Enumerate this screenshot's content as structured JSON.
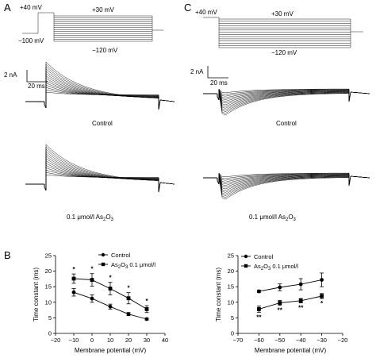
{
  "figure": {
    "panel_a": "A",
    "panel_b": "B",
    "panel_c": "C",
    "voltage_protocol": {
      "holding_high": "+40 mV",
      "holding_low": "−100 mV",
      "step_top": "+30 mV",
      "step_bottom": "−120 mV"
    },
    "scale_bar": {
      "current": "2 nA",
      "time": "20 ms"
    },
    "trace_labels": {
      "control": "Control",
      "arsenic": "0.1 μmol/l As",
      "arsenic_sub_2": "2",
      "arsenic_o": "O",
      "arsenic_sub_3": "3"
    },
    "colors": {
      "ink": "#000000",
      "background": "#ffffff"
    }
  },
  "chart_data": [
    {
      "type": "line",
      "ylabel": "Time constant (ms)",
      "xlabel": "Membrane potential (mV)",
      "xlim": [
        -20,
        40
      ],
      "ylim": [
        0,
        25
      ],
      "x_ticks": [
        -20,
        -10,
        0,
        10,
        20,
        30,
        40
      ],
      "y_ticks": [
        0,
        5,
        10,
        15,
        20,
        25
      ],
      "legend": {
        "position": "top-right"
      },
      "x": [
        -10,
        0,
        10,
        20,
        30
      ],
      "series": [
        {
          "name": "Control",
          "marker": "circle",
          "values": [
            13.2,
            11.2,
            8.6,
            6.2,
            4.6
          ],
          "errors": [
            1.2,
            1.2,
            0.8,
            0.5,
            0.3
          ]
        },
        {
          "name": "As2O3 0.1 μmol/l",
          "marker": "square",
          "values": [
            17.6,
            17.2,
            14.4,
            11.3,
            7.8
          ],
          "errors": [
            1.5,
            2.0,
            2.0,
            1.8,
            1.1
          ]
        }
      ],
      "significance": [
        {
          "x": -10,
          "label": "*"
        },
        {
          "x": 0,
          "label": "*"
        },
        {
          "x": 10,
          "label": "*"
        },
        {
          "x": 20,
          "label": "*"
        },
        {
          "x": 30,
          "label": "*"
        }
      ]
    },
    {
      "type": "line",
      "ylabel": "Time constant (ms)",
      "xlabel": "Membrane potential (mV)",
      "xlim": [
        -70,
        -20
      ],
      "ylim": [
        0,
        25
      ],
      "x_ticks": [
        -70,
        -60,
        -50,
        -40,
        -30,
        -20
      ],
      "y_ticks": [
        0,
        5,
        10,
        15,
        20,
        25
      ],
      "legend": {
        "position": "top-left"
      },
      "x": [
        -60,
        -50,
        -40,
        -30
      ],
      "series": [
        {
          "name": "Control",
          "marker": "circle",
          "values": [
            13.5,
            14.8,
            15.8,
            17.2
          ],
          "errors": [
            0.4,
            1.1,
            1.8,
            2.2
          ]
        },
        {
          "name": "As2O3 0.1 μmol/l",
          "marker": "square",
          "values": [
            7.8,
            9.8,
            10.5,
            12.0
          ],
          "errors": [
            1.0,
            0.8,
            0.7,
            0.8
          ]
        }
      ],
      "significance": [
        {
          "x": -60,
          "label": "**"
        },
        {
          "x": -50,
          "label": "**"
        },
        {
          "x": -40,
          "label": "**"
        },
        {
          "x": -30,
          "label": "*"
        }
      ]
    }
  ]
}
